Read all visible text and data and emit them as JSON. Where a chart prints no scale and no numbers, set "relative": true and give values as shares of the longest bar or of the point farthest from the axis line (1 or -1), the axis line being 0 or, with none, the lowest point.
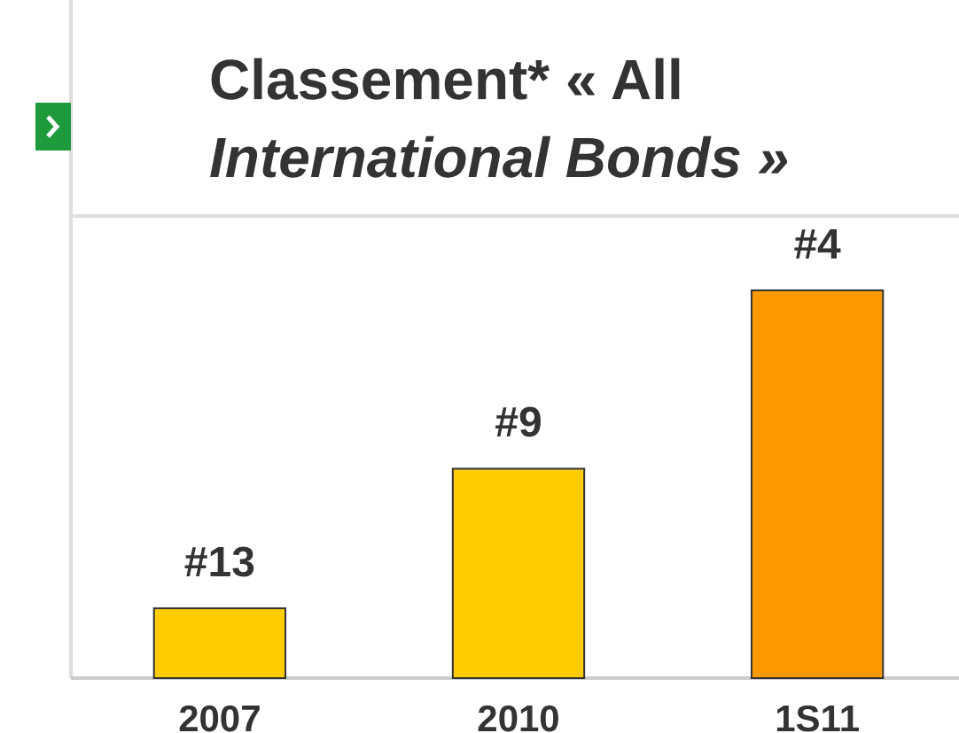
{
  "chart_data": {
    "type": "bar",
    "title": "Classement* « All International Bonds »",
    "categories": [
      "2007",
      "2010",
      "1S11"
    ],
    "values": [
      0.18,
      0.54,
      1
    ],
    "colors": [
      "#ffcc00",
      "#ffcc00",
      "#ff9900"
    ],
    "relative": true,
    "annotations": [
      {
        "text": "#13",
        "x": "2007",
        "y": 0.18
      },
      {
        "text": "#9",
        "x": "2010",
        "y": 0.54
      },
      {
        "text": "#4",
        "x": "1S11",
        "y": 1
      }
    ]
  }
}
